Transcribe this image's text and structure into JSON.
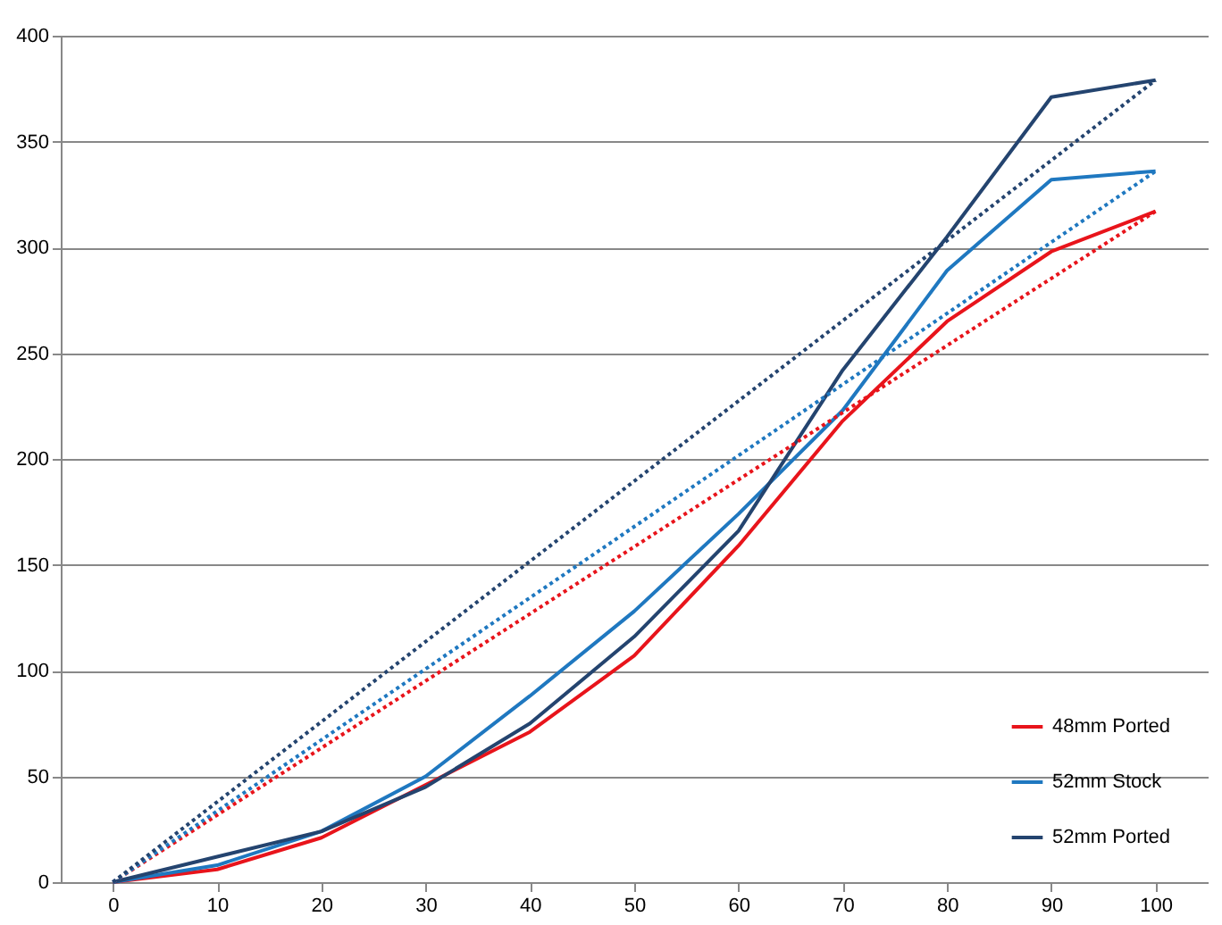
{
  "chart_data": {
    "type": "line",
    "categories": [
      "0",
      "10",
      "20",
      "30",
      "40",
      "50",
      "60",
      "70",
      "80",
      "90",
      "100"
    ],
    "series": [
      {
        "name": "48mm Ported",
        "color": "#e8141b",
        "values": [
          0,
          6,
          21,
          46,
          71,
          107,
          159,
          218,
          265,
          298,
          317
        ]
      },
      {
        "name": "52mm Stock",
        "color": "#1f78c0",
        "values": [
          0,
          8,
          24,
          50,
          88,
          128,
          174,
          223,
          289,
          332,
          336
        ]
      },
      {
        "name": "52mm Ported",
        "color": "#24446f",
        "values": [
          0,
          12,
          24,
          45,
          75,
          116,
          166,
          242,
          305,
          371,
          379
        ]
      },
      {
        "type": "line",
        "color": "#e8141b",
        "x": [
          "0",
          "100"
        ],
        "values": [
          0,
          317
        ],
        "line_style": "dotted"
      },
      {
        "type": "line",
        "color": "#1f78c0",
        "x": [
          "0",
          "100"
        ],
        "values": [
          0,
          336
        ],
        "line_style": "dotted"
      },
      {
        "type": "line",
        "color": "#24446f",
        "x": [
          "0",
          "100"
        ],
        "values": [
          0,
          379
        ],
        "line_style": "dotted"
      }
    ],
    "ylim": [
      0,
      400
    ],
    "yticks": [
      0,
      50,
      100,
      150,
      200,
      250,
      300,
      350,
      400
    ],
    "grid": "y",
    "legend": "bottom right",
    "line_style": "solid"
  }
}
